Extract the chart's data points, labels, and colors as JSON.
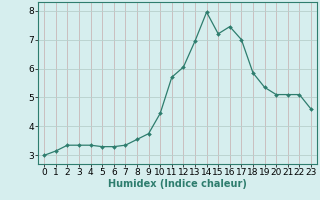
{
  "x": [
    0,
    1,
    2,
    3,
    4,
    5,
    6,
    7,
    8,
    9,
    10,
    11,
    12,
    13,
    14,
    15,
    16,
    17,
    18,
    19,
    20,
    21,
    22,
    23
  ],
  "y": [
    3.0,
    3.15,
    3.35,
    3.35,
    3.35,
    3.3,
    3.3,
    3.35,
    3.55,
    3.75,
    4.45,
    5.7,
    6.05,
    6.95,
    7.95,
    7.2,
    7.45,
    7.0,
    5.85,
    5.35,
    5.1,
    5.1,
    5.1,
    4.6
  ],
  "line_color": "#2e7d6e",
  "marker": "D",
  "marker_size": 2.0,
  "bg_color": "#d6eeee",
  "grid_color_v": "#c8b8b8",
  "grid_color_h": "#b8d0cc",
  "xlabel": "Humidex (Indice chaleur)",
  "ylim": [
    2.7,
    8.3
  ],
  "xlim": [
    -0.5,
    23.5
  ],
  "yticks": [
    3,
    4,
    5,
    6,
    7,
    8
  ],
  "xticks": [
    0,
    1,
    2,
    3,
    4,
    5,
    6,
    7,
    8,
    9,
    10,
    11,
    12,
    13,
    14,
    15,
    16,
    17,
    18,
    19,
    20,
    21,
    22,
    23
  ],
  "xlabel_fontsize": 7,
  "tick_fontsize": 6.5
}
